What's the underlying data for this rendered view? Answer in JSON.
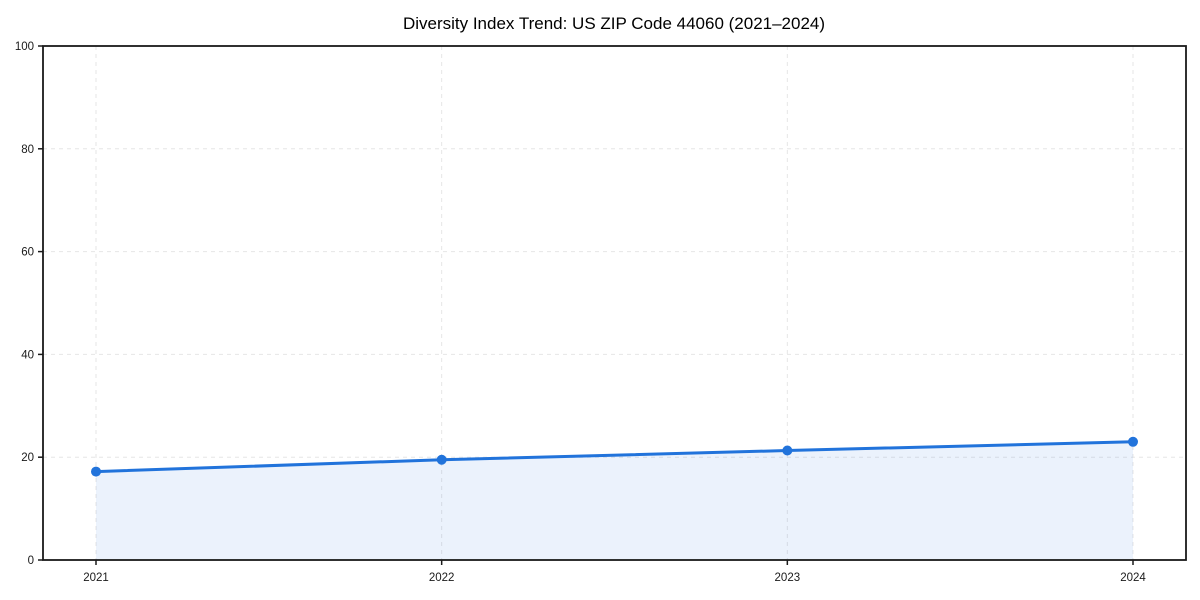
{
  "chart_data": {
    "type": "line",
    "title": "Diversity Index Trend: US ZIP Code 44060 (2021–2024)",
    "categories": [
      "2021",
      "2022",
      "2023",
      "2024"
    ],
    "series": [
      {
        "name": "Diversity Index",
        "values": [
          17.2,
          19.5,
          21.3,
          23.0
        ]
      }
    ],
    "xlabel": "",
    "ylabel": "",
    "ylim": [
      0,
      100
    ],
    "yticks": [
      0,
      20,
      40,
      60,
      80,
      100
    ],
    "grid": true,
    "grid_style": "dashed",
    "legend_position": "none",
    "area_fill": true,
    "marker": "circle",
    "style": {
      "line_color": "#2173db",
      "marker_color": "#2173db",
      "fill_color": "#2173db",
      "fill_opacity": 0.09,
      "grid_color": "#e6e6e6",
      "spine_color": "#1a1a1a",
      "text_color": "#1a1a1a",
      "background": "#ffffff"
    }
  }
}
